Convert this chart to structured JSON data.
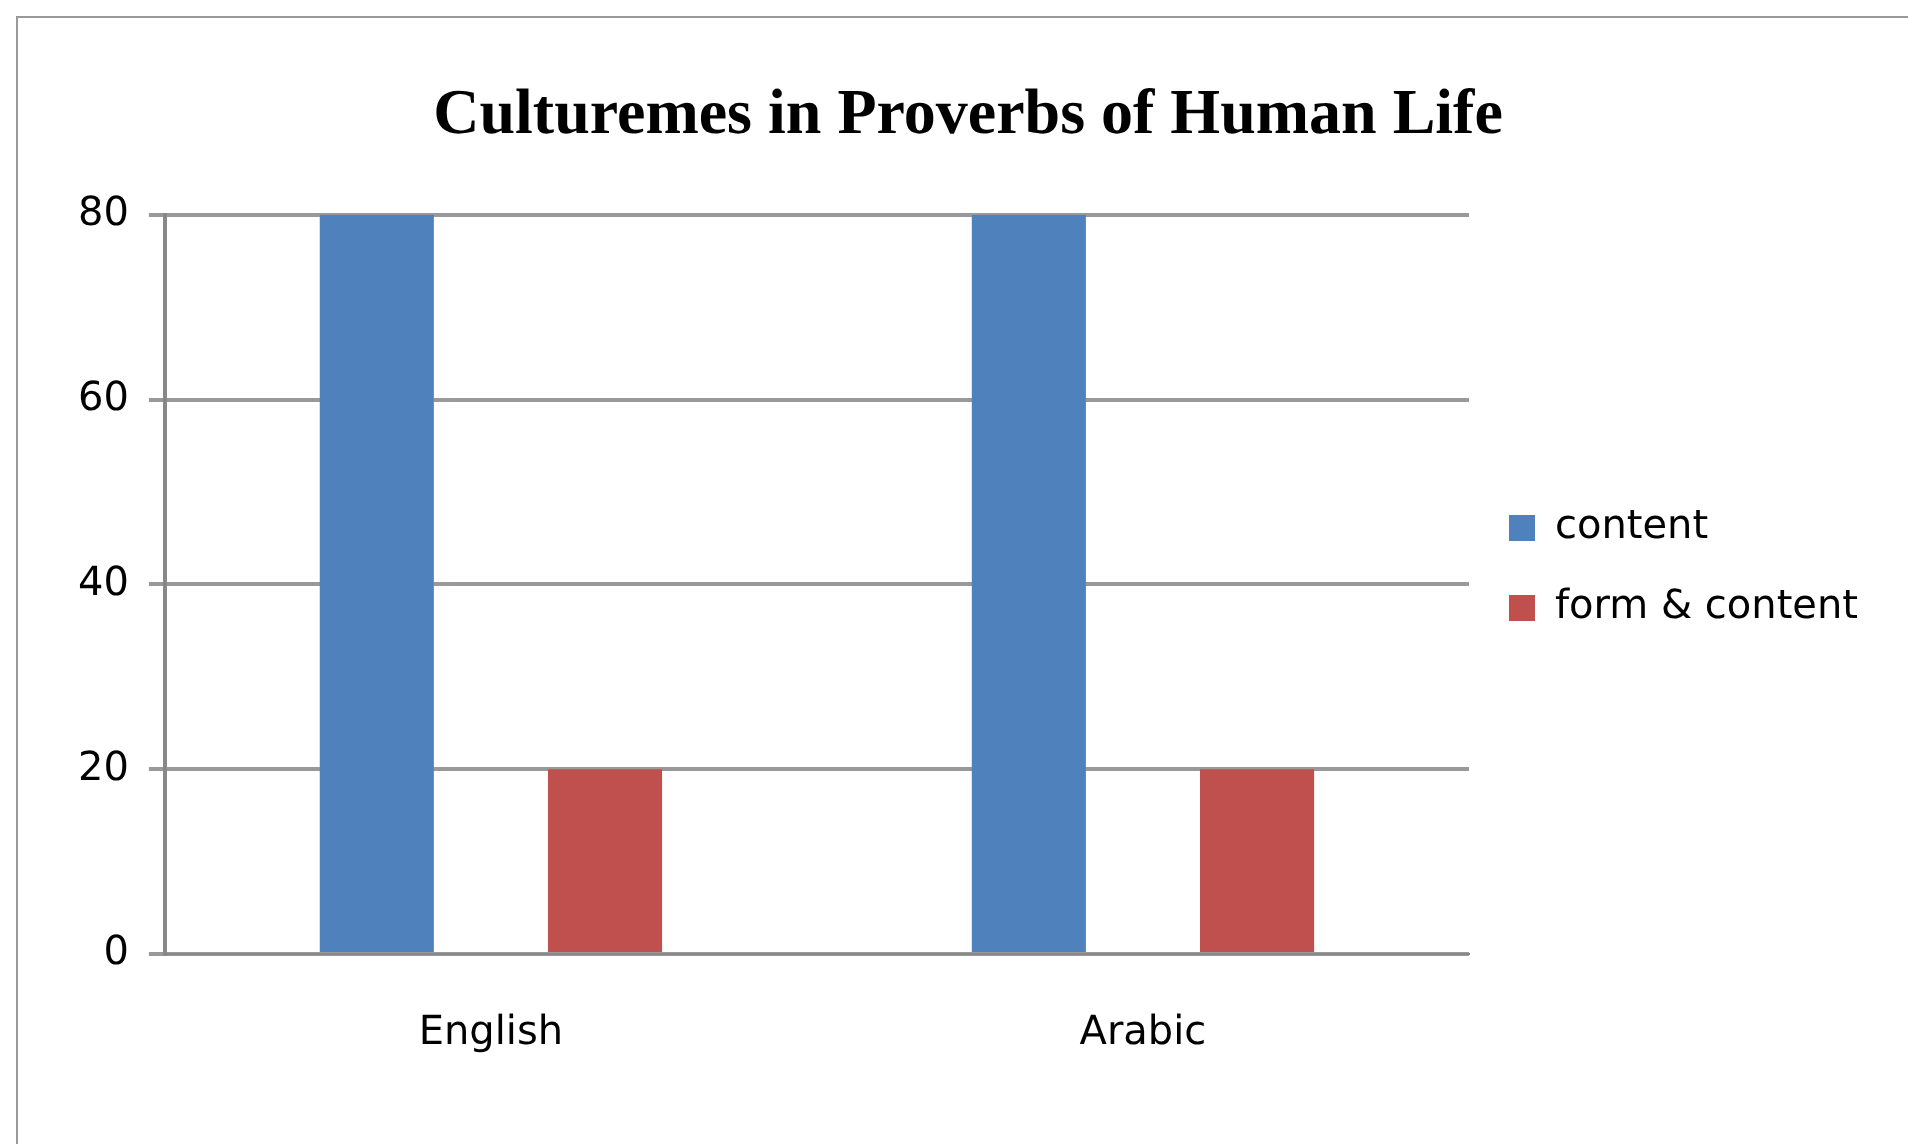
{
  "chart_data": {
    "type": "bar",
    "title": "Culturemes in Proverbs of Human Life",
    "categories": [
      "English",
      "Arabic"
    ],
    "series": [
      {
        "name": "content",
        "color": "#4f81bd",
        "values": [
          80,
          80
        ]
      },
      {
        "name": "form & content",
        "color": "#c0504d",
        "values": [
          20,
          20
        ]
      }
    ],
    "ylim": [
      0,
      80
    ],
    "yticks": [
      0,
      20,
      40,
      60,
      80
    ],
    "grid": "y",
    "legend": "right"
  }
}
